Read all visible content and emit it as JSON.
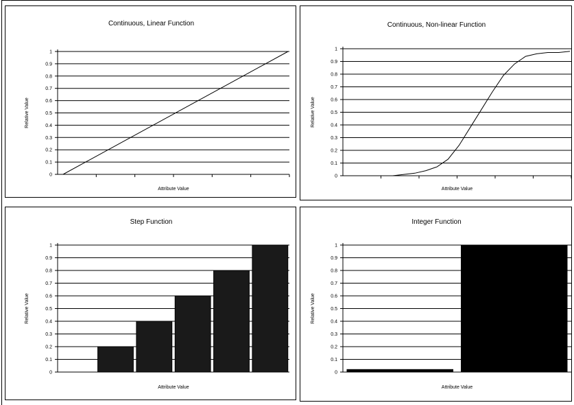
{
  "chart_data": [
    {
      "type": "line",
      "title": "Continuous, Linear Function",
      "xlabel": "Attribute Value",
      "ylabel": "Relative Value",
      "ylim": [
        0,
        1
      ],
      "yticks": [
        "0",
        "0.1",
        "0.2",
        "0.3",
        "0.4",
        "0.5",
        "0.6",
        "0.7",
        "0.8",
        "0.9",
        "1"
      ],
      "grid": true,
      "x": [
        0,
        1
      ],
      "series": [
        {
          "values": [
            0,
            1
          ]
        }
      ]
    },
    {
      "type": "line",
      "title": "Continuous, Non-linear Function",
      "xlabel": "Attribute Value",
      "ylabel": "Relative Value",
      "ylim": [
        0,
        1
      ],
      "yticks": [
        "0",
        "0.1",
        "0.2",
        "0.3",
        "0.4",
        "0.5",
        "0.6",
        "0.7",
        "0.8",
        "0.9",
        "1"
      ],
      "grid": true,
      "x": [
        0,
        0.05,
        0.1,
        0.15,
        0.2,
        0.25,
        0.3,
        0.35,
        0.4,
        0.45,
        0.5,
        0.55,
        0.6,
        0.65,
        0.7,
        0.75,
        0.8,
        0.85,
        0.9,
        0.95,
        1
      ],
      "series": [
        {
          "values": [
            0,
            0,
            0,
            0,
            0,
            0.01,
            0.02,
            0.04,
            0.07,
            0.13,
            0.24,
            0.38,
            0.52,
            0.66,
            0.79,
            0.88,
            0.94,
            0.96,
            0.97,
            0.97,
            0.98
          ]
        }
      ]
    },
    {
      "type": "bar",
      "title": "Step Function",
      "xlabel": "Attribute Value",
      "ylabel": "Relative Value",
      "ylim": [
        0,
        1
      ],
      "yticks": [
        "0",
        "0.1",
        "0.2",
        "0.3",
        "0.4",
        "0.5",
        "0.6",
        "0.7",
        "0.8",
        "0.9",
        "1"
      ],
      "grid": true,
      "values": [
        0,
        0.2,
        0.4,
        0.6,
        0.8,
        1.0
      ],
      "bar_color": "#1a1a1a"
    },
    {
      "type": "bar",
      "title": "Integer Function",
      "xlabel": "Attribute Value",
      "ylabel": "Relative Value",
      "ylim": [
        0,
        1
      ],
      "yticks": [
        "0",
        "0.1",
        "0.2",
        "0.3",
        "0.4",
        "0.5",
        "0.6",
        "0.7",
        "0.8",
        "0.9",
        "1"
      ],
      "grid": true,
      "values": [
        0.02,
        1.0
      ],
      "bar_color": "#000000"
    }
  ]
}
